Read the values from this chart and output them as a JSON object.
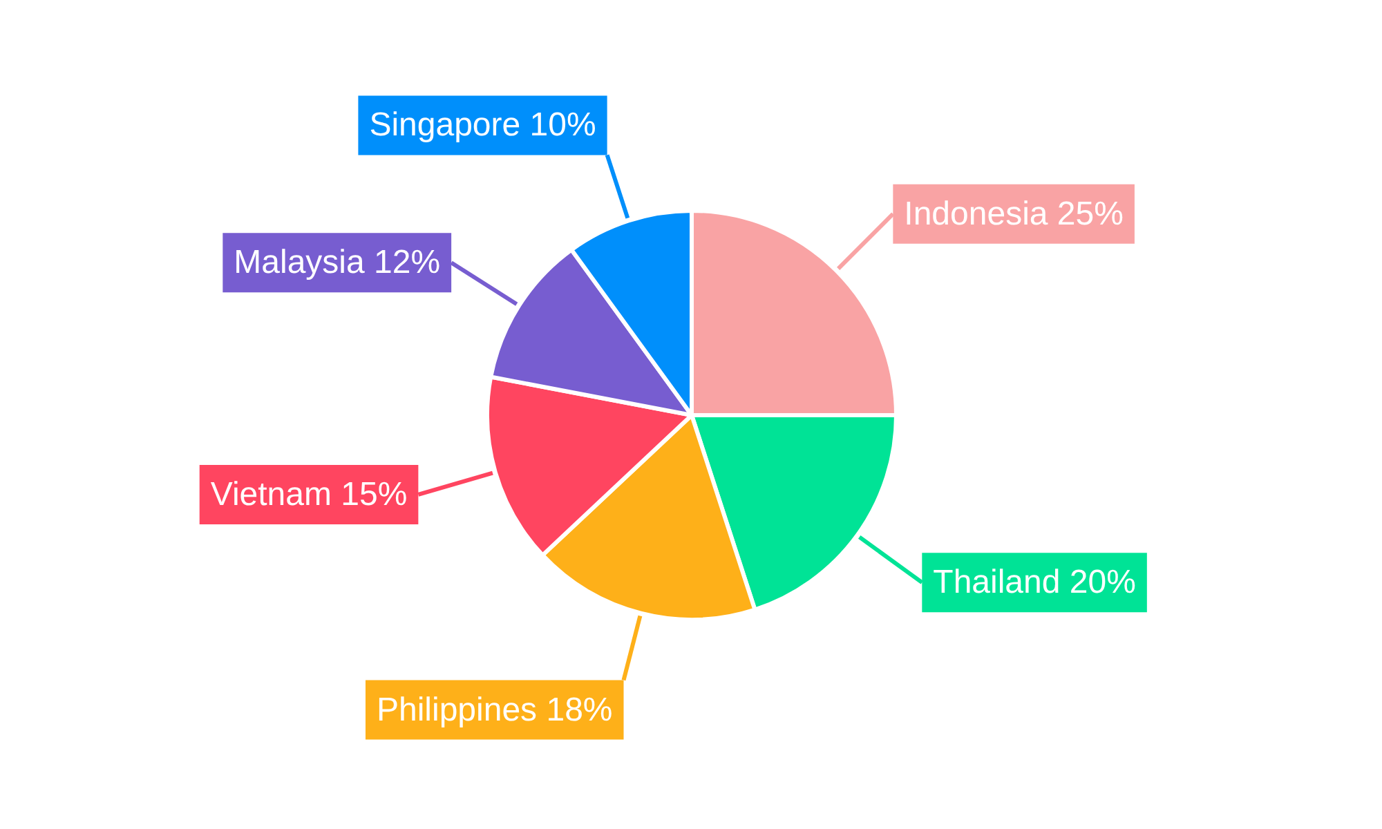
{
  "chart_data": {
    "type": "pie",
    "categories": [
      "Indonesia",
      "Thailand",
      "Philippines",
      "Vietnam",
      "Malaysia",
      "Singapore"
    ],
    "values": [
      25,
      20,
      18,
      15,
      12,
      10
    ],
    "colors": [
      "#f9a3a4",
      "#00e396",
      "#feb019",
      "#ff4560",
      "#775dd0",
      "#008ffb"
    ],
    "value_labels": [
      "25%",
      "20%",
      "18%",
      "15%",
      "12%",
      "10%"
    ]
  }
}
